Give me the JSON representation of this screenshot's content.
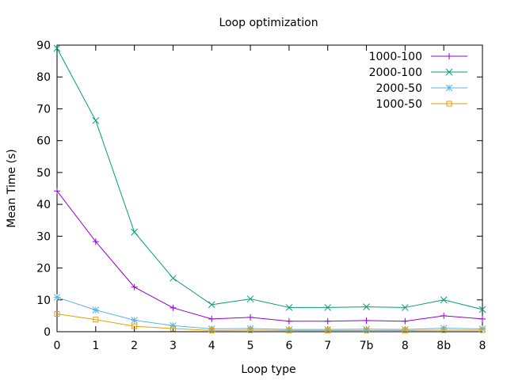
{
  "chart_data": {
    "type": "line",
    "title": "Loop optimization",
    "xlabel": "Loop type",
    "ylabel": "Mean Time (s)",
    "categories": [
      "0",
      "1",
      "2",
      "3",
      "4",
      "5",
      "6",
      "7",
      "7b",
      "8",
      "8b",
      "8"
    ],
    "ylim": [
      0,
      90
    ],
    "yticks": [
      0,
      10,
      20,
      30,
      40,
      50,
      60,
      70,
      80,
      90
    ],
    "grid": false,
    "legend_position": "top-right",
    "series": [
      {
        "name": "1000-100",
        "color": "#9400d3",
        "marker": "plus",
        "values": [
          44.2,
          28.3,
          14.0,
          7.5,
          4.0,
          4.5,
          3.3,
          3.3,
          3.5,
          3.3,
          5.0,
          4.0
        ]
      },
      {
        "name": "2000-100",
        "color": "#009e73",
        "marker": "cross",
        "values": [
          89.0,
          66.3,
          31.3,
          16.8,
          8.5,
          10.3,
          7.6,
          7.6,
          7.8,
          7.6,
          10.0,
          7.0
        ]
      },
      {
        "name": "2000-50",
        "color": "#56b4e9",
        "marker": "star",
        "values": [
          10.8,
          6.8,
          3.6,
          1.9,
          0.9,
          1.0,
          0.7,
          0.7,
          0.8,
          0.7,
          1.1,
          0.9
        ]
      },
      {
        "name": "1000-50",
        "color": "#e69f00",
        "marker": "square",
        "values": [
          5.6,
          3.8,
          1.7,
          1.0,
          0.4,
          0.5,
          0.4,
          0.4,
          0.4,
          0.4,
          0.5,
          0.5
        ]
      }
    ]
  }
}
